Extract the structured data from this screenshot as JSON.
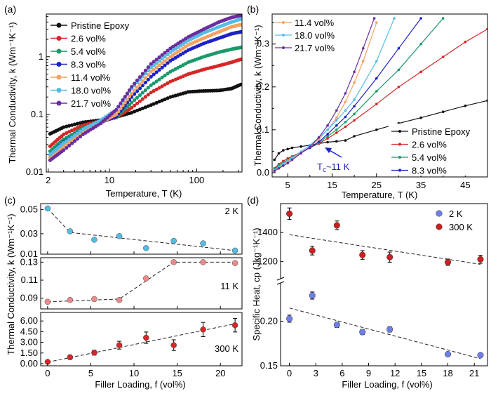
{
  "figure_labels": {
    "a": "(a)",
    "b": "(b)",
    "c": "(c)",
    "d": "(d)"
  },
  "colors": {
    "Pristine Epoxy": "#111111",
    "2.6 vol%": "#d62728",
    "5.4 vol%": "#1a9a6a",
    "8.3 vol%": "#1c22c6",
    "11.4 vol%": "#f5a261",
    "18.0 vol%": "#55bde5",
    "21.7 vol%": "#6a2c9e"
  },
  "chart_data": [
    {
      "id": "a",
      "type": "line",
      "xlabel": "Temperature, T (K)",
      "ylabel": "Thermal Conductivity, k (Wm⁻¹K⁻¹)",
      "xscale": "log",
      "yscale": "log",
      "xlim": [
        1.9,
        330
      ],
      "ylim": [
        0.01,
        5.5
      ],
      "xticks": [
        2,
        10,
        100
      ],
      "xtick_labels": [
        "2",
        "10",
        "100"
      ],
      "yticks": [
        0.01,
        0.1,
        1
      ],
      "ytick_labels": [
        "0.01",
        "0.1",
        "1"
      ],
      "legend_position": "top-left",
      "series": [
        {
          "name": "Pristine Epoxy",
          "x": [
            2.1,
            3,
            5,
            8,
            12,
            18,
            30,
            50,
            80,
            120,
            180,
            250,
            320
          ],
          "y": [
            0.046,
            0.06,
            0.073,
            0.08,
            0.09,
            0.107,
            0.145,
            0.2,
            0.245,
            0.255,
            0.26,
            0.28,
            0.33
          ]
        },
        {
          "name": "2.6 vol%",
          "x": [
            2.1,
            3,
            5,
            8,
            12,
            18,
            30,
            50,
            80,
            120,
            180,
            250,
            320
          ],
          "y": [
            0.028,
            0.045,
            0.065,
            0.077,
            0.088,
            0.13,
            0.24,
            0.37,
            0.5,
            0.6,
            0.7,
            0.8,
            0.9
          ]
        },
        {
          "name": "5.4 vol%",
          "x": [
            2.1,
            3,
            5,
            8,
            12,
            18,
            30,
            50,
            80,
            120,
            180,
            250,
            320
          ],
          "y": [
            0.023,
            0.037,
            0.058,
            0.075,
            0.09,
            0.16,
            0.32,
            0.55,
            0.8,
            1.0,
            1.2,
            1.35,
            1.45
          ]
        },
        {
          "name": "8.3 vol%",
          "x": [
            2.1,
            3,
            5,
            8,
            12,
            18,
            30,
            50,
            80,
            120,
            180,
            250,
            320
          ],
          "y": [
            0.02,
            0.033,
            0.055,
            0.073,
            0.092,
            0.2,
            0.45,
            0.85,
            1.3,
            1.7,
            2.1,
            2.5,
            2.7
          ]
        },
        {
          "name": "11.4 vol%",
          "x": [
            2.1,
            3,
            5,
            8,
            12,
            18,
            30,
            50,
            80,
            120,
            180,
            250,
            320
          ],
          "y": [
            0.018,
            0.028,
            0.05,
            0.072,
            0.1,
            0.23,
            0.55,
            1.0,
            1.6,
            2.1,
            2.7,
            3.3,
            3.6
          ]
        },
        {
          "name": "18.0 vol%",
          "x": [
            2.1,
            3,
            5,
            8,
            12,
            18,
            30,
            50,
            80,
            120,
            180,
            250,
            320
          ],
          "y": [
            0.02,
            0.032,
            0.055,
            0.08,
            0.12,
            0.28,
            0.65,
            1.2,
            1.9,
            2.6,
            3.3,
            4.0,
            4.5
          ]
        },
        {
          "name": "21.7 vol%",
          "x": [
            2.1,
            3,
            5,
            8,
            12,
            18,
            30,
            50,
            80,
            120,
            180,
            250,
            320
          ],
          "y": [
            0.016,
            0.024,
            0.045,
            0.07,
            0.12,
            0.3,
            0.75,
            1.4,
            2.2,
            3.0,
            4.0,
            4.8,
            5.2
          ]
        }
      ]
    },
    {
      "id": "b",
      "type": "line",
      "xlabel": "Temperature, T (K)",
      "ylabel": "Thermal Conductivity, k (Wm⁻¹K⁻¹)",
      "xlim": [
        1.5,
        50
      ],
      "ylim": [
        -0.01,
        0.37
      ],
      "xticks": [
        5,
        15,
        25,
        35,
        45
      ],
      "xtick_labels": [
        "5",
        "15",
        "25",
        "35",
        "45"
      ],
      "yticks": [
        0.0,
        0.1,
        0.2,
        0.3
      ],
      "ytick_labels": [
        "0.0",
        "0.1",
        "0.2",
        "0.3"
      ],
      "annotation": "T",
      "annotation_sub": "c",
      "annotation_rest": "~11 K",
      "series": [
        {
          "name": "Pristine Epoxy",
          "x": [
            2,
            3,
            4,
            5,
            6,
            8,
            10,
            12,
            14,
            16,
            18,
            20,
            25,
            30,
            35,
            40,
            45,
            50
          ],
          "y": [
            0.03,
            0.045,
            0.052,
            0.055,
            0.058,
            0.061,
            0.064,
            0.068,
            0.071,
            0.073,
            0.075,
            0.085,
            0.1,
            0.115,
            0.128,
            0.142,
            0.156,
            0.168
          ]
        },
        {
          "name": "2.6 vol%",
          "x": [
            2,
            3,
            4,
            5,
            6,
            8,
            10,
            12,
            14,
            16,
            18,
            20,
            25,
            30,
            35,
            40,
            45,
            50
          ],
          "y": [
            0.01,
            0.02,
            0.027,
            0.033,
            0.038,
            0.048,
            0.058,
            0.068,
            0.08,
            0.093,
            0.107,
            0.122,
            0.16,
            0.2,
            0.235,
            0.27,
            0.305,
            0.335
          ]
        },
        {
          "name": "5.4 vol%",
          "x": [
            2,
            3,
            4,
            5,
            6,
            8,
            10,
            12,
            14,
            16,
            18,
            20,
            25,
            30,
            35,
            40
          ],
          "y": [
            0.008,
            0.017,
            0.024,
            0.03,
            0.036,
            0.047,
            0.058,
            0.07,
            0.085,
            0.1,
            0.118,
            0.137,
            0.19,
            0.24,
            0.3,
            0.36
          ]
        },
        {
          "name": "8.3 vol%",
          "x": [
            2,
            3,
            4,
            5,
            6,
            8,
            10,
            12,
            14,
            16,
            18,
            20,
            25,
            30,
            35
          ],
          "y": [
            0.006,
            0.014,
            0.021,
            0.028,
            0.034,
            0.046,
            0.058,
            0.072,
            0.09,
            0.11,
            0.13,
            0.155,
            0.22,
            0.29,
            0.36
          ]
        },
        {
          "name": "11.4 vol%",
          "x": [
            2,
            3,
            4,
            5,
            6,
            8,
            10,
            12,
            14,
            16,
            18,
            20,
            22,
            25
          ],
          "y": [
            0.005,
            0.012,
            0.019,
            0.026,
            0.033,
            0.046,
            0.06,
            0.078,
            0.1,
            0.128,
            0.165,
            0.21,
            0.26,
            0.35
          ]
        },
        {
          "name": "18.0 vol%",
          "x": [
            2,
            3,
            4,
            5,
            6,
            8,
            10,
            12,
            14,
            16,
            18,
            20,
            25,
            29
          ],
          "y": [
            0.006,
            0.014,
            0.021,
            0.028,
            0.035,
            0.049,
            0.064,
            0.082,
            0.1,
            0.122,
            0.145,
            0.17,
            0.26,
            0.36
          ]
        },
        {
          "name": "21.7 vol%",
          "x": [
            2,
            3,
            4,
            5,
            6,
            8,
            10,
            12,
            14,
            16,
            18,
            20,
            22,
            24.5
          ],
          "y": [
            0.004,
            0.01,
            0.016,
            0.022,
            0.03,
            0.045,
            0.06,
            0.082,
            0.11,
            0.145,
            0.185,
            0.235,
            0.29,
            0.36
          ]
        }
      ]
    },
    {
      "id": "c",
      "type": "scatter",
      "xlabel": "Filler Loading, f (vol%)",
      "ylabel": "Thermal Conductivity, k (Wm⁻¹K⁻¹)",
      "xlim": [
        -0.8,
        22.5
      ],
      "xticks": [
        0,
        5,
        10,
        15,
        20
      ],
      "xtick_labels": [
        "0",
        "5",
        "10",
        "15",
        "20"
      ],
      "subplots": [
        {
          "label": "2 K",
          "color": "#55bde5",
          "ylim": [
            0.013,
            0.055
          ],
          "yticks": [
            0.01,
            0.03,
            0.05
          ],
          "ytick_labels": [
            "0.01",
            "0.03",
            "0.05"
          ],
          "x": [
            0,
            2.6,
            5.4,
            8.3,
            11.4,
            14.6,
            18.0,
            21.7
          ],
          "y": [
            0.051,
            0.032,
            0.025,
            0.028,
            0.018,
            0.024,
            0.022,
            0.016
          ],
          "fit": {
            "x": [
              0,
              2.6,
              21.7
            ],
            "y": [
              0.051,
              0.031,
              0.016
            ]
          }
        },
        {
          "label": "11 K",
          "color": "#ef8a8a",
          "ylim": [
            0.078,
            0.135
          ],
          "yticks": [
            0.09,
            0.11,
            0.13
          ],
          "ytick_labels": [
            "0.09",
            "0.11",
            "0.13"
          ],
          "x": [
            0,
            2.6,
            5.4,
            8.3,
            11.4,
            14.6,
            18.0,
            21.7
          ],
          "y": [
            0.086,
            0.088,
            0.089,
            0.088,
            0.112,
            0.13,
            0.13,
            0.129
          ],
          "fit": {
            "x": [
              0,
              8.3,
              14.6,
              21.7
            ],
            "y": [
              0.086,
              0.089,
              0.13,
              0.13
            ]
          }
        },
        {
          "label": "300 K",
          "color": "#d62728",
          "ylim": [
            -0.3,
            7.2
          ],
          "yticks": [
            0,
            1.5,
            3.0,
            4.5,
            6.0
          ],
          "ytick_labels": [
            "0.00",
            "1.50",
            "3.00",
            "4.50",
            "6.00"
          ],
          "x": [
            0,
            2.6,
            5.4,
            8.3,
            11.4,
            14.6,
            18.0,
            21.7
          ],
          "y": [
            0.25,
            0.9,
            1.55,
            2.6,
            3.65,
            2.6,
            4.8,
            5.4
          ],
          "err": [
            0.1,
            0.3,
            0.35,
            0.55,
            0.8,
            0.75,
            1.0,
            0.95
          ],
          "fit": {
            "x": [
              0,
              21.7
            ],
            "y": [
              0.2,
              5.6
            ]
          }
        }
      ]
    },
    {
      "id": "d",
      "type": "scatter",
      "xlabel": "Filler Loading, f (vol%)",
      "ylabel": "Specific Heat, cp (Jkg⁻¹K⁻¹)",
      "xlim": [
        -1,
        22.5
      ],
      "xticks": [
        0,
        3,
        6,
        9,
        12,
        15,
        18,
        21
      ],
      "xtick_labels": [
        "0",
        "3",
        "6",
        "9",
        "12",
        "15",
        "18",
        "21"
      ],
      "legend_position": "top-right",
      "axis_break": true,
      "series": [
        {
          "name": "2 K",
          "color": "#6f7fe8",
          "ylim": [
            0.15,
            0.24
          ],
          "yticks": [
            0.15,
            0.2
          ],
          "ytick_labels": [
            "0.15",
            "0.20"
          ],
          "x": [
            0,
            2.6,
            5.4,
            8.3,
            11.4,
            18.0,
            21.7
          ],
          "y": [
            0.203,
            0.229,
            0.196,
            0.188,
            0.191,
            0.163,
            0.162
          ],
          "err": [
            0.004,
            0.004,
            0.003,
            0.003,
            0.003,
            0.002,
            0.002
          ],
          "fit": {
            "x": [
              0,
              21.7
            ],
            "y": [
              0.215,
              0.158
            ]
          }
        },
        {
          "name": "300 K",
          "color": "#cc1f1f",
          "ylim": [
            1100,
            1600
          ],
          "yticks": [
            1200,
            1400
          ],
          "ytick_labels": [
            "1200",
            "1400"
          ],
          "x": [
            0,
            2.6,
            5.4,
            8.3,
            11.4,
            18.0,
            21.7
          ],
          "y": [
            1530,
            1275,
            1450,
            1245,
            1230,
            1195,
            1215
          ],
          "err": [
            40,
            30,
            30,
            30,
            35,
            22,
            28
          ],
          "fit": {
            "x": [
              0,
              21.7
            ],
            "y": [
              1385,
              1180
            ]
          }
        }
      ]
    }
  ]
}
